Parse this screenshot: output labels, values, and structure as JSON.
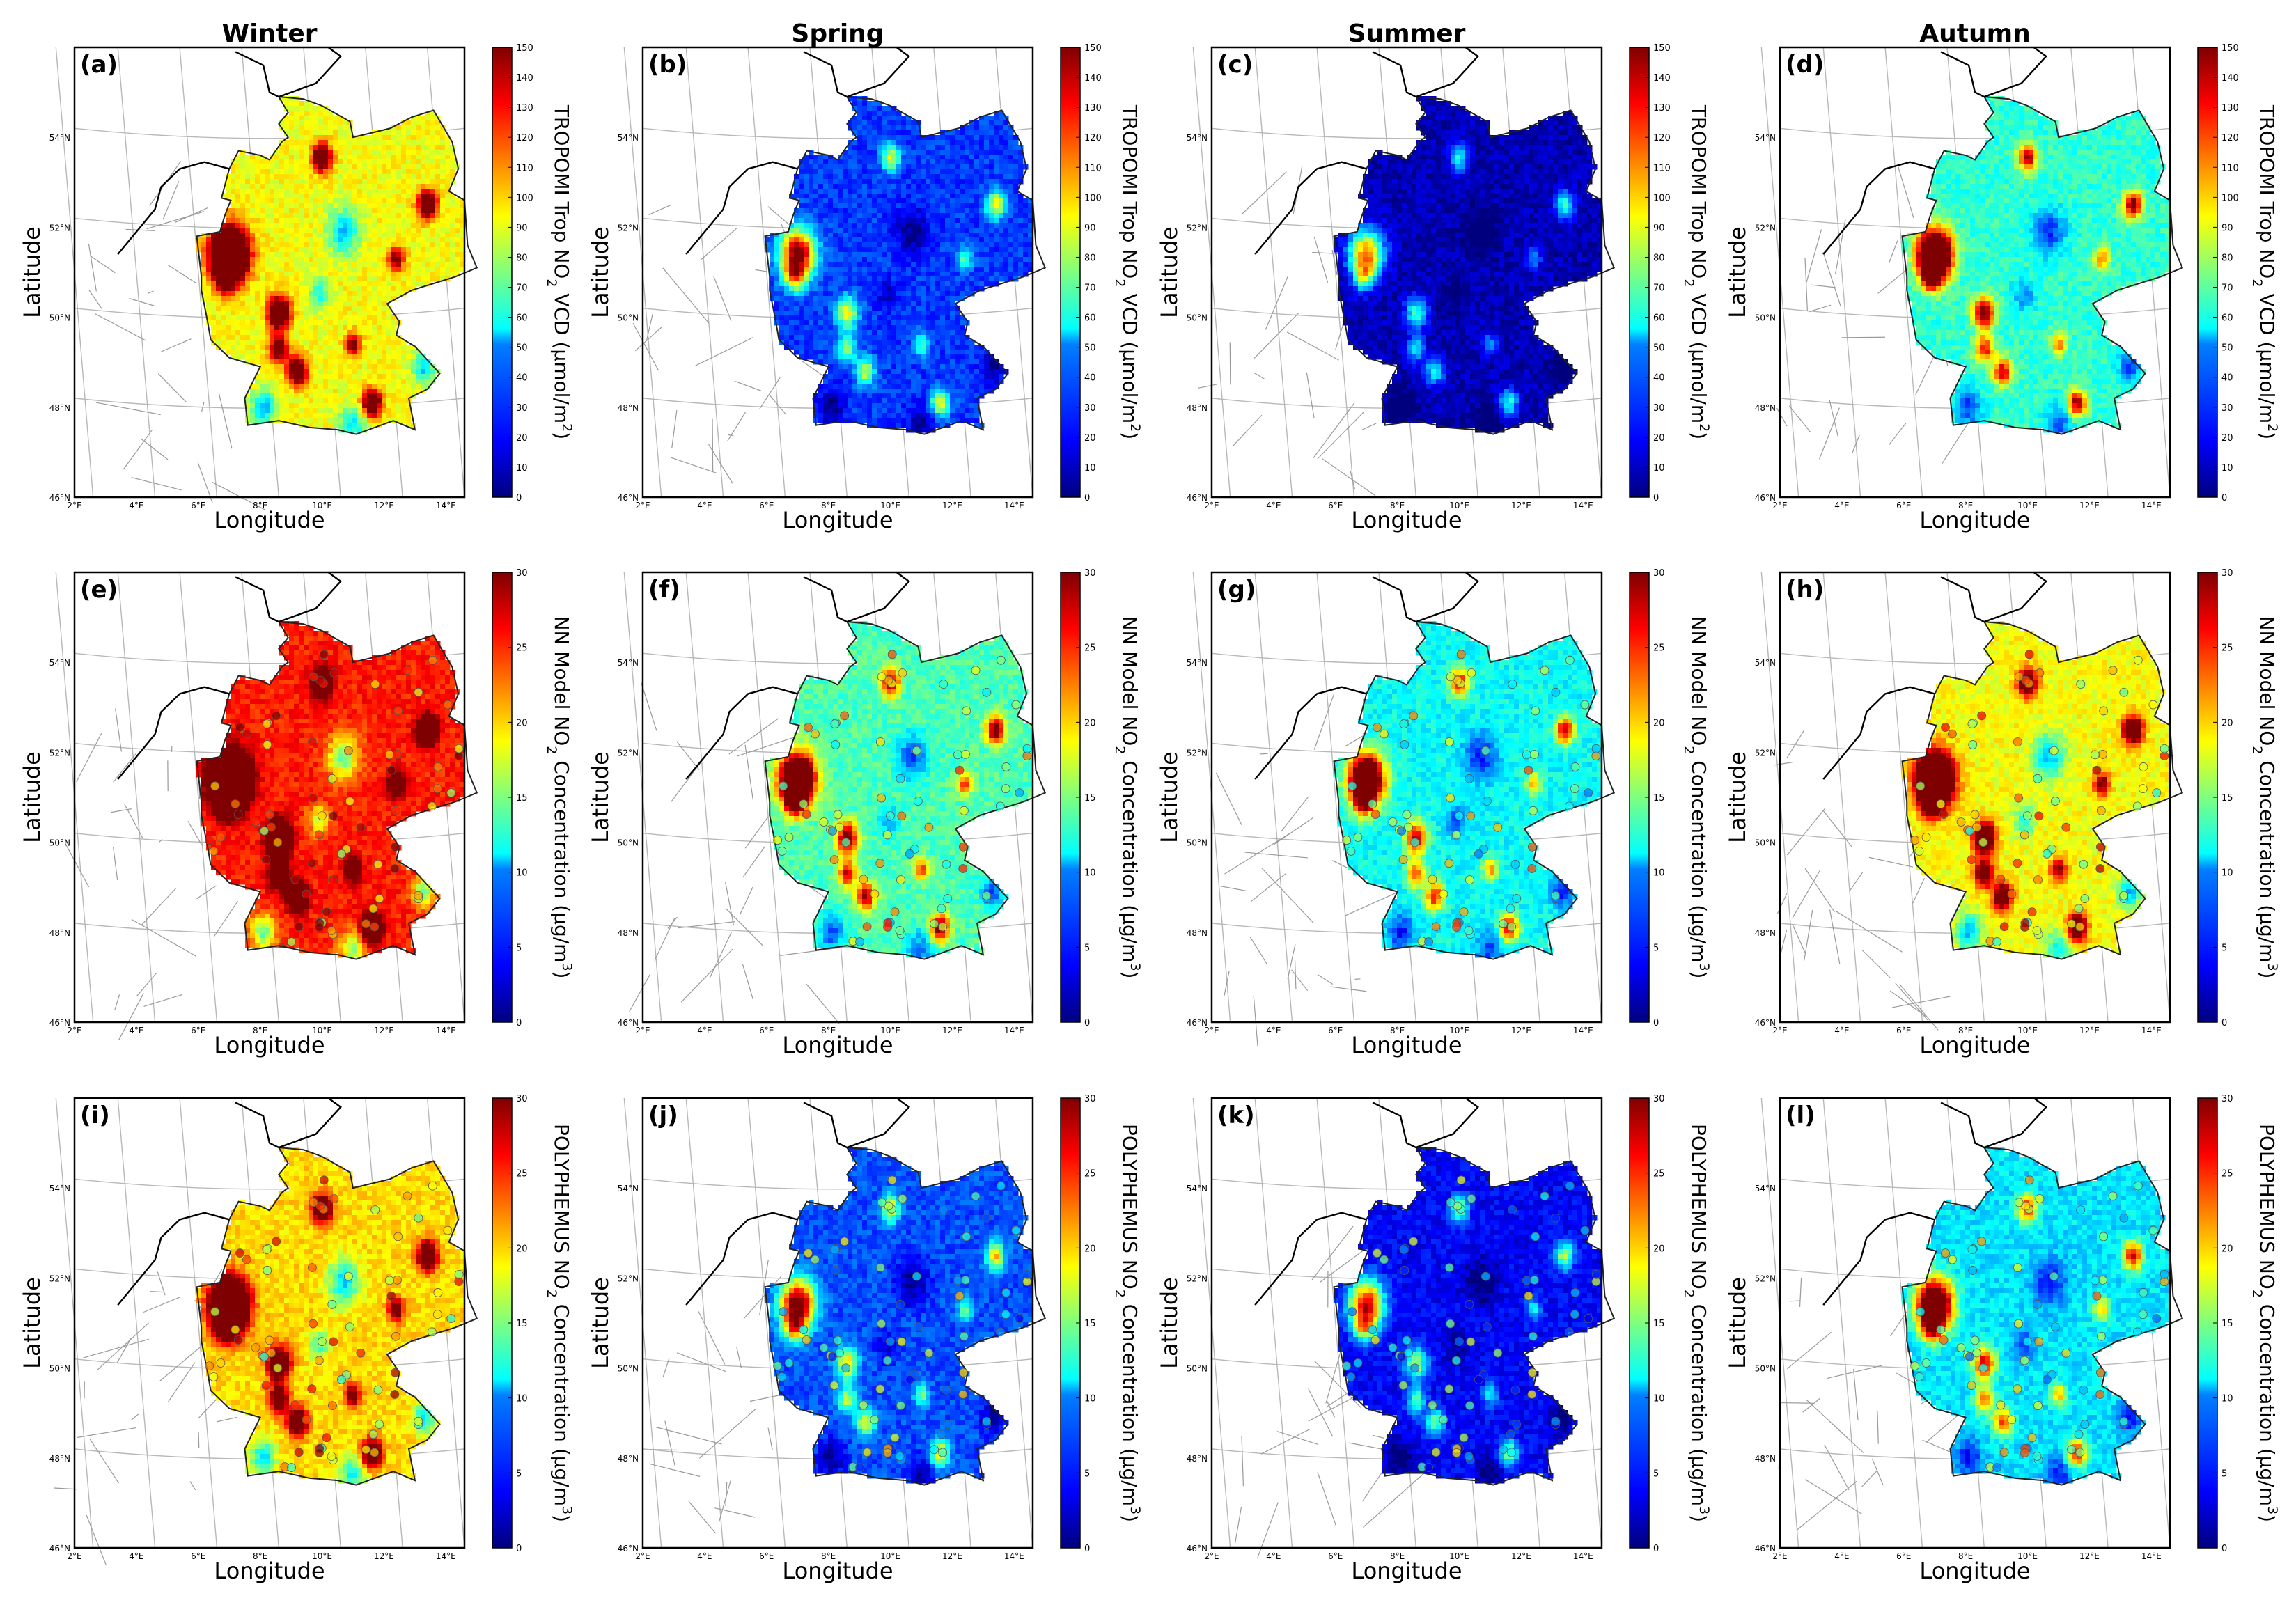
{
  "figure": {
    "column_titles": [
      "Winter",
      "Spring",
      "Summer",
      "Autumn"
    ],
    "x_axis_label": "Longitude",
    "y_axis_label": "Latitude",
    "lon_ticks": [
      "2°E",
      "4°E",
      "6°E",
      "8°E",
      "10°E",
      "12°E",
      "14°E"
    ],
    "lat_ticks": [
      "46°N",
      "48°N",
      "50°N",
      "52°N",
      "54°N"
    ],
    "rows": [
      {
        "colorbar_label": {
          "pre": "TROPOMI Trop NO",
          "sub": "2",
          "mid": " VCD (µmol/m",
          "sup": "2",
          "post": ")"
        },
        "colorbar_ticks": [
          "0",
          "10",
          "20",
          "30",
          "40",
          "50",
          "60",
          "70",
          "80",
          "90",
          "100",
          "110",
          "120",
          "130",
          "140",
          "150"
        ],
        "panels": [
          "(a)",
          "(b)",
          "(c)",
          "(d)"
        ],
        "season_level": [
          0.62,
          0.18,
          0.05,
          0.42
        ]
      },
      {
        "colorbar_label": {
          "pre": "NN Model NO",
          "sub": "2",
          "mid": " Concentration (µg/m",
          "sup": "3",
          "post": ")"
        },
        "colorbar_ticks": [
          "0",
          "5",
          "10",
          "15",
          "20",
          "25",
          "30"
        ],
        "panels": [
          "(e)",
          "(f)",
          "(g)",
          "(h)"
        ],
        "season_level": [
          0.85,
          0.45,
          0.38,
          0.62
        ]
      },
      {
        "colorbar_label": {
          "pre": "POLYPHEMUS NO",
          "sub": "2",
          "mid": " Concentration (µg/m",
          "sup": "3",
          "post": ")"
        },
        "colorbar_ticks": [
          "0",
          "5",
          "10",
          "15",
          "20",
          "25",
          "30"
        ],
        "panels": [
          "(i)",
          "(j)",
          "(k)",
          "(l)"
        ],
        "season_level": [
          0.66,
          0.2,
          0.12,
          0.35
        ]
      }
    ]
  },
  "colors": {
    "jet": [
      "#00007f",
      "#0000ff",
      "#007fff",
      "#00ffff",
      "#7fff7f",
      "#ffff00",
      "#ff7f00",
      "#ff0000",
      "#7f0000"
    ],
    "background": "#ffffff",
    "frame": "#000000",
    "grid": "#b8b8b8"
  }
}
